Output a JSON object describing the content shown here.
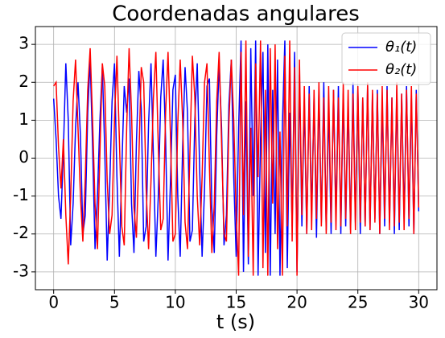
{
  "chart_data": {
    "type": "line",
    "title": "Coordenadas angulares",
    "xlabel": "t (s)",
    "xlim": [
      -1.5,
      31.5
    ],
    "ylim": [
      -3.47,
      3.47
    ],
    "xticks": [
      0,
      5,
      10,
      15,
      20,
      25,
      30
    ],
    "yticks": [
      -3,
      -2,
      -1,
      0,
      1,
      2,
      3
    ],
    "grid": true,
    "legend": "upper right",
    "x": [
      0,
      0.2,
      0.4,
      0.6,
      0.8,
      1,
      1.2,
      1.4,
      1.6,
      1.8,
      2,
      2.2,
      2.4,
      2.6,
      2.8,
      3,
      3.2,
      3.4,
      3.6,
      3.8,
      4,
      4.2,
      4.4,
      4.6,
      4.8,
      5,
      5.2,
      5.4,
      5.6,
      5.8,
      6,
      6.2,
      6.4,
      6.6,
      6.8,
      7,
      7.2,
      7.4,
      7.6,
      7.8,
      8,
      8.2,
      8.4,
      8.6,
      8.8,
      9,
      9.2,
      9.4,
      9.6,
      9.8,
      10,
      10.2,
      10.4,
      10.6,
      10.8,
      11,
      11.2,
      11.4,
      11.6,
      11.8,
      12,
      12.2,
      12.4,
      12.6,
      12.8,
      13,
      13.2,
      13.4,
      13.6,
      13.8,
      14,
      14.2,
      14.4,
      14.6,
      14.8,
      15,
      15.2,
      15.4,
      15.6,
      15.8,
      16,
      16.2,
      16.4,
      16.6,
      16.8,
      17,
      17.2,
      17.4,
      17.6,
      17.8,
      18,
      18.2,
      18.4,
      18.6,
      18.8,
      19,
      19.2,
      19.4,
      19.6,
      19.8,
      20,
      20.2,
      20.4,
      20.6,
      20.8,
      21,
      21.2,
      21.4,
      21.6,
      21.8,
      22,
      22.2,
      22.4,
      22.6,
      22.8,
      23,
      23.2,
      23.4,
      23.6,
      23.8,
      24,
      24.2,
      24.4,
      24.6,
      24.8,
      25,
      25.2,
      25.4,
      25.6,
      25.8,
      26,
      26.2,
      26.4,
      26.6,
      26.8,
      27,
      27.2,
      27.4,
      27.6,
      27.8,
      28,
      28.2,
      28.4,
      28.6,
      28.8,
      29,
      29.2,
      29.4,
      29.6,
      29.8,
      30
    ],
    "series": [
      {
        "name": "θ₁(t)",
        "color": "#0000ff",
        "values": [
          1.57,
          0.5,
          -1.0,
          -1.6,
          0.2,
          2.5,
          1.0,
          -2.3,
          -1.2,
          0.8,
          2.0,
          0.6,
          -2.0,
          -1.5,
          1.2,
          2.6,
          0.3,
          -2.4,
          -1.0,
          1.0,
          2.4,
          0.2,
          -2.7,
          -0.8,
          1.5,
          2.5,
          -0.5,
          -2.6,
          -0.3,
          1.9,
          1.2,
          2.1,
          -1.2,
          -2.5,
          0.4,
          2.3,
          1.3,
          -2.2,
          -1.8,
          0.9,
          2.5,
          0.0,
          -2.6,
          -1.0,
          1.6,
          2.6,
          0.5,
          -2.7,
          -0.6,
          1.8,
          2.2,
          -1.0,
          -2.6,
          0.3,
          2.4,
          1.2,
          -2.2,
          -1.9,
          1.0,
          2.5,
          -0.3,
          -2.6,
          -0.8,
          1.9,
          2.1,
          -1.3,
          -2.5,
          0.6,
          2.5,
          0.8,
          -2.3,
          -1.5,
          1.4,
          2.6,
          -0.5,
          -2.6,
          0.8,
          3.1,
          -3.0,
          1.5,
          -2.8,
          2.9,
          -1.0,
          3.1,
          -3.1,
          0.5,
          2.8,
          -2.5,
          3.0,
          -3.1,
          1.8,
          -2.0,
          2.6,
          -3.1,
          0.9,
          3.1,
          -2.9,
          1.2,
          -1.8,
          2.8,
          -3.0,
          2.2,
          -1.8,
          1.5,
          -2.0,
          1.9,
          -1.5,
          1.6,
          -2.1,
          1.8,
          -1.7,
          2.0,
          -1.9,
          1.4,
          -2.0,
          1.8,
          -1.6,
          1.9,
          -2.0,
          1.7,
          -1.8,
          1.5,
          -1.9,
          2.0,
          -1.7,
          1.8,
          -2.0,
          1.6,
          -1.8,
          1.9,
          -1.9,
          1.7,
          -1.6,
          1.8,
          -2.0,
          1.5,
          -1.8,
          1.9,
          -1.7,
          1.6,
          -2.0,
          1.8,
          -1.9,
          1.7,
          -1.6,
          1.9,
          -1.8,
          1.6,
          -2.0,
          1.8,
          -1.4
        ]
      },
      {
        "name": "θ₂(t)",
        "color": "#ff0000",
        "values": [
          1.9,
          2.0,
          0.3,
          -0.8,
          0.5,
          -1.5,
          -2.8,
          -1.0,
          1.5,
          2.6,
          0.8,
          -1.0,
          -2.2,
          -0.5,
          1.8,
          2.9,
          1.0,
          -1.2,
          -2.4,
          0.1,
          2.5,
          1.9,
          -0.6,
          -2.0,
          -1.5,
          1.0,
          2.7,
          0.5,
          -1.8,
          -2.3,
          0.8,
          2.9,
          1.2,
          -1.3,
          -2.1,
          0.0,
          2.4,
          2.0,
          -0.8,
          -2.4,
          -0.6,
          1.6,
          2.8,
          0.3,
          -1.9,
          -1.6,
          1.2,
          2.8,
          0.6,
          -2.2,
          -2.0,
          0.9,
          2.6,
          1.0,
          -1.7,
          -2.4,
          0.2,
          2.7,
          1.6,
          -1.0,
          -2.3,
          -0.5,
          2.0,
          2.5,
          -0.2,
          -2.5,
          -1.2,
          1.5,
          2.8,
          0.4,
          -2.0,
          -2.2,
          0.9,
          2.6,
          1.0,
          -1.5,
          -3.1,
          2.8,
          -1.5,
          3.1,
          -2.6,
          0.8,
          -3.1,
          2.5,
          -0.5,
          3.1,
          -2.9,
          1.8,
          -3.1,
          2.9,
          -1.2,
          3.0,
          -2.4,
          0.7,
          -3.1,
          2.7,
          -1.8,
          3.1,
          -2.2,
          2.4,
          -3.1,
          2.6,
          -1.5,
          1.9,
          -2.0,
          1.7,
          -1.9,
          1.8,
          -1.6,
          2.0,
          -1.8,
          1.6,
          -2.0,
          1.9,
          -1.7,
          1.8,
          -1.9,
          1.6,
          -1.8,
          2.0,
          -1.6,
          1.8,
          -2.0,
          1.7,
          -1.9,
          1.9,
          -1.7,
          1.6,
          -1.8,
          2.0,
          -1.9,
          1.8,
          -1.7,
          1.7,
          -2.0,
          1.9,
          -1.6,
          1.8,
          -1.9,
          1.6,
          -1.8,
          2.0,
          -1.7,
          1.7,
          -1.9,
          1.8,
          -1.6,
          1.9,
          -2.0,
          1.7,
          -1.3
        ]
      }
    ]
  }
}
